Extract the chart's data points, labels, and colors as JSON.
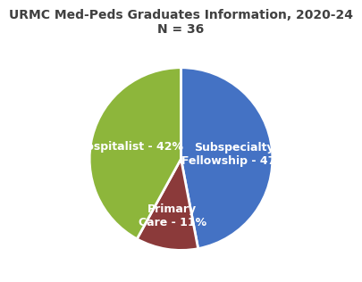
{
  "title_line1": "URMC Med-Peds Graduates Information, 2020-24",
  "title_line2": "N = 36",
  "slices": [
    {
      "label": "Subspecialty\nFellowship - 47%",
      "value": 47,
      "color": "#4472C4",
      "label_r": 0.58
    },
    {
      "label": "Primary\nCare - 11%",
      "value": 11,
      "color": "#8B3A3A",
      "label_r": 0.62
    },
    {
      "label": "Hospitalist - 42%",
      "value": 42,
      "color": "#8DB63B",
      "label_r": 0.58
    }
  ],
  "start_angle": 90,
  "counterclock": false,
  "text_color": "#FFFFFF",
  "title_color": "#404040",
  "label_fontsize": 9.0,
  "title_fontsize": 10.0,
  "title2_fontsize": 10.5,
  "edge_color": "#FFFFFF",
  "edge_linewidth": 2.0
}
